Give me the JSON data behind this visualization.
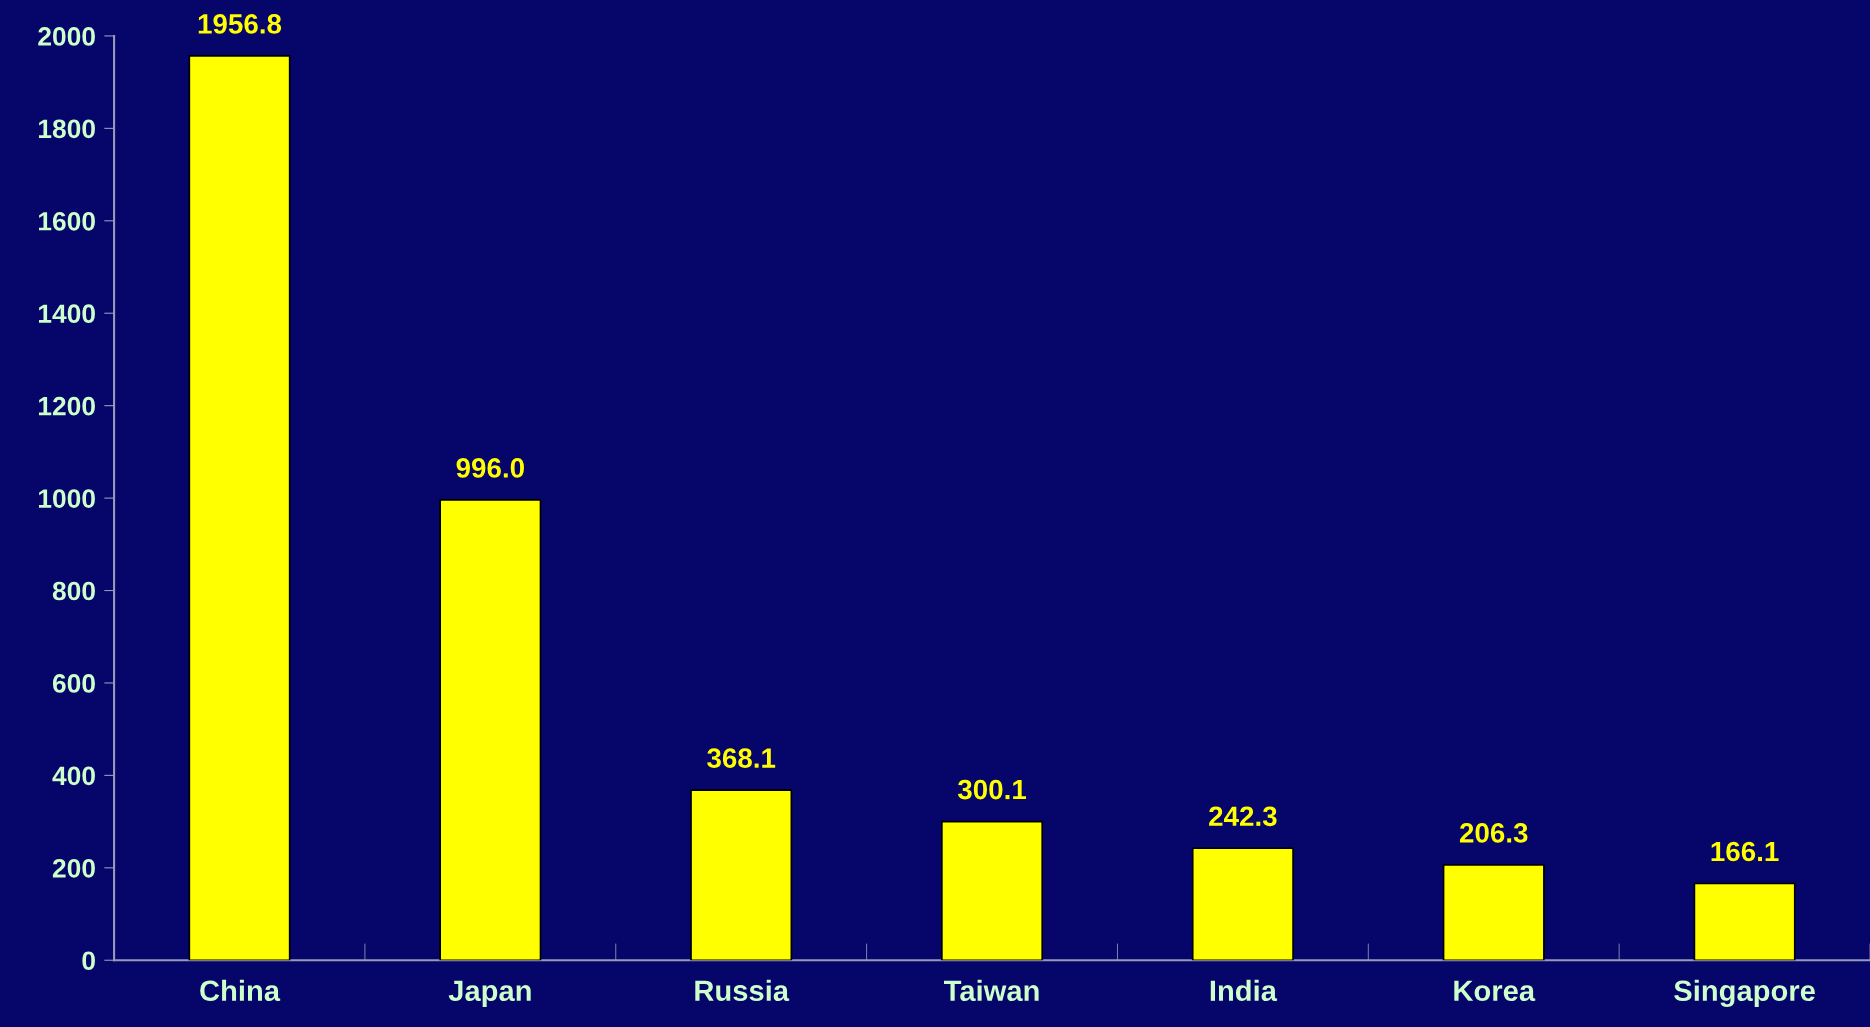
{
  "chart_data": {
    "type": "bar",
    "categories": [
      "China",
      "Japan",
      "Russia",
      "Taiwan",
      "India",
      "Korea",
      "Singapore"
    ],
    "values": [
      1956.8,
      996.0,
      368.1,
      300.1,
      242.3,
      206.3,
      166.1
    ],
    "value_labels": [
      "1956.8",
      "996.0",
      "368.1",
      "300.1",
      "242.3",
      "206.3",
      "166.1"
    ],
    "color": "#ffff00",
    "ylim": [
      0,
      2000
    ],
    "yticks": [
      0,
      200,
      400,
      600,
      800,
      1000,
      1200,
      1400,
      1600,
      1800,
      2000
    ],
    "grid": false
  }
}
